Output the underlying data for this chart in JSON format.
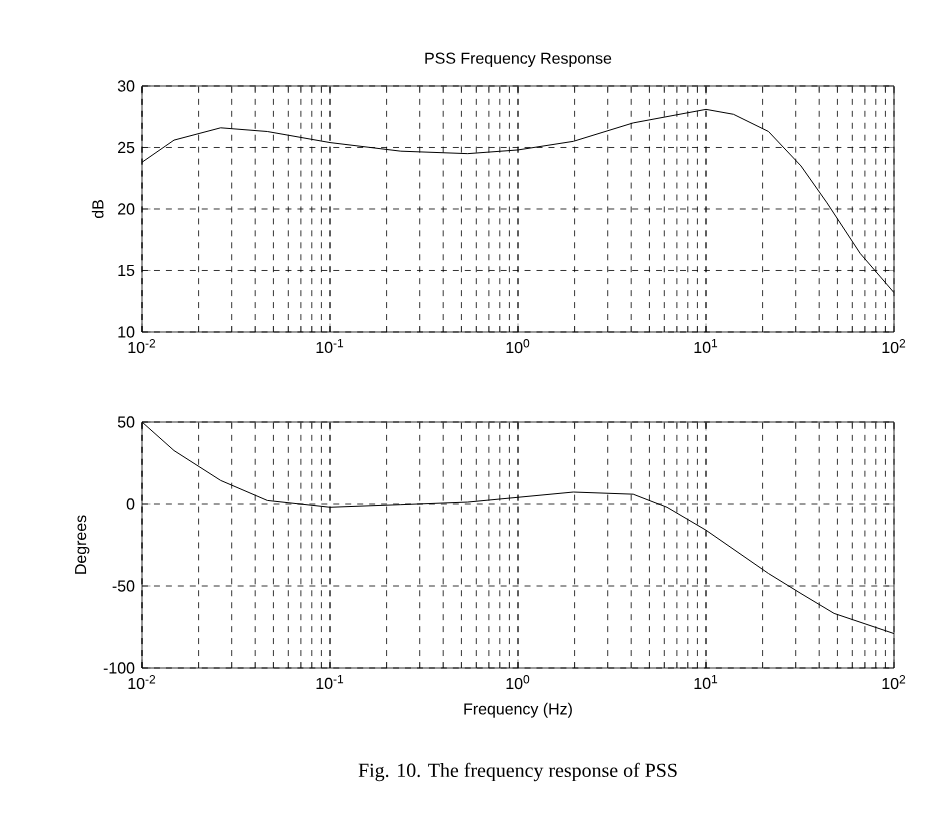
{
  "chart_data": [
    {
      "type": "line",
      "title": "PSS Frequency Response",
      "ylabel": "dB",
      "log": "x",
      "grid": true,
      "marker": "none",
      "line_style": "solid",
      "xlim": [
        0.01,
        100
      ],
      "ylim": [
        10,
        30
      ],
      "xticks": [
        {
          "value": 0.01,
          "label": "10$^{-2}$"
        },
        {
          "value": 0.1,
          "label": "10$^{-1}$"
        },
        {
          "value": 1,
          "label": "10$^{0}$"
        },
        {
          "value": 10,
          "label": "10$^{1}$"
        },
        {
          "value": 100,
          "label": "10$^{2}$"
        }
      ],
      "yticks": [
        10,
        15,
        20,
        25,
        30
      ],
      "series": [
        {
          "color": "#000000",
          "x": [
            0.01,
            0.0148,
            0.0262,
            0.0464,
            0.1,
            0.238,
            0.54,
            1,
            1.97,
            4.1,
            10,
            14,
            21.5,
            32,
            44,
            66,
            100
          ],
          "values": [
            23.8,
            25.6,
            26.6,
            26.3,
            25.4,
            24.7,
            24.5,
            24.8,
            25.5,
            27.0,
            28.1,
            27.7,
            26.3,
            23.5,
            20.5,
            16.4,
            13.2
          ]
        }
      ]
    },
    {
      "type": "line",
      "xlabel": "Frequency (Hz)",
      "ylabel": "Degrees",
      "log": "x",
      "grid": true,
      "marker": "none",
      "line_style": "solid",
      "xlim": [
        0.01,
        100
      ],
      "ylim": [
        -100,
        50
      ],
      "xticks": [
        {
          "value": 0.01,
          "label": "10$^{-2}$"
        },
        {
          "value": 0.1,
          "label": "10$^{-1}$"
        },
        {
          "value": 1,
          "label": "10$^{0}$"
        },
        {
          "value": 10,
          "label": "10$^{1}$"
        },
        {
          "value": 100,
          "label": "10$^{2}$"
        }
      ],
      "yticks": [
        -100,
        -50,
        0,
        50
      ],
      "annotations": [
        "Fig. 10. The frequency response of PSS"
      ],
      "series": [
        {
          "color": "#000000",
          "x": [
            0.01,
            0.0148,
            0.0262,
            0.0464,
            0.1,
            0.238,
            0.54,
            1,
            1.97,
            4.1,
            6.2,
            10,
            21.5,
            32,
            48,
            100
          ],
          "values": [
            50,
            32.6,
            14.4,
            2.2,
            -2,
            -0.4,
            1.2,
            4.1,
            7.3,
            6,
            -2,
            -16,
            -42.4,
            -54.6,
            -66.7,
            -79
          ]
        }
      ]
    }
  ]
}
